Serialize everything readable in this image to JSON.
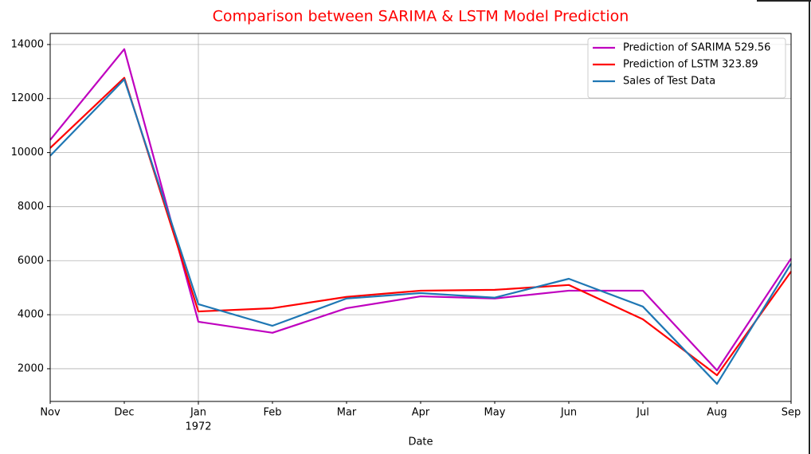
{
  "chart_data": {
    "type": "line",
    "title": "Comparison between SARIMA & LSTM Model Prediction",
    "title_color": "#ff0000",
    "x_label": "Date",
    "categories": [
      "Nov",
      "Dec",
      "Jan",
      "Feb",
      "Mar",
      "Apr",
      "May",
      "Jun",
      "Jul",
      "Aug",
      "Sep"
    ],
    "x_sublabels": [
      null,
      null,
      "1972",
      null,
      null,
      null,
      null,
      null,
      null,
      null,
      null
    ],
    "series": [
      {
        "name": "Prediction of SARIMA 529.56",
        "color": "#bf00bf",
        "values": [
          10470,
          13830,
          3740,
          3330,
          4240,
          4680,
          4600,
          4890,
          4890,
          1940,
          6080
        ]
      },
      {
        "name": "Prediction of LSTM 323.89",
        "color": "#ff0000",
        "values": [
          10170,
          12770,
          4120,
          4240,
          4660,
          4890,
          4920,
          5100,
          3830,
          1760,
          5600
        ]
      },
      {
        "name": "Sales of Test Data",
        "color": "#1f77b4",
        "values": [
          9880,
          12710,
          4390,
          3590,
          4600,
          4800,
          4630,
          5330,
          4300,
          1440,
          5890
        ]
      }
    ],
    "ylim": [
      790,
      14410
    ],
    "yticks": [
      2000,
      4000,
      6000,
      8000,
      10000,
      12000,
      14000
    ],
    "grid": true,
    "legend": "upper right"
  }
}
